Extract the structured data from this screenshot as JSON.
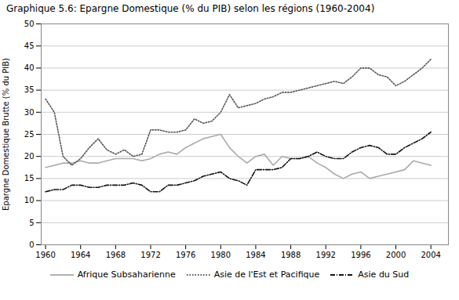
{
  "chart_data": {
    "type": "line",
    "title": "Graphique 5.6: Epargne Domestique (% du PIB) selon les régions (1960-2004)",
    "ylabel": "Epargne Domestique Brutte (% du PIB)",
    "x": [
      1960,
      1961,
      1962,
      1963,
      1964,
      1965,
      1966,
      1967,
      1968,
      1969,
      1970,
      1971,
      1972,
      1973,
      1974,
      1975,
      1976,
      1977,
      1978,
      1979,
      1980,
      1981,
      1982,
      1983,
      1984,
      1985,
      1986,
      1987,
      1988,
      1989,
      1990,
      1991,
      1992,
      1993,
      1994,
      1995,
      1996,
      1997,
      1998,
      1999,
      2000,
      2001,
      2002,
      2003,
      2004
    ],
    "series": [
      {
        "name": "Afrique Subsaharienne",
        "color": "#aaaaaa",
        "line_style": "solid",
        "values": [
          17.5,
          18.0,
          18.5,
          18.5,
          19.0,
          18.5,
          18.5,
          19.0,
          19.5,
          19.5,
          19.5,
          19.0,
          19.5,
          20.5,
          21.0,
          20.5,
          22.0,
          23.0,
          24.0,
          24.5,
          25.0,
          22.0,
          20.0,
          18.5,
          20.0,
          20.5,
          18.0,
          20.0,
          19.5,
          19.5,
          20.0,
          18.5,
          17.5,
          16.0,
          15.0,
          16.0,
          16.5,
          15.0,
          15.5,
          16.0,
          16.5,
          17.0,
          19.0,
          18.5,
          18.0
        ]
      },
      {
        "name": "Asie de l'Est et Pacifique",
        "color": "#555555",
        "line_style": "dotted",
        "values": [
          33.0,
          30.0,
          20.0,
          18.0,
          19.5,
          22.0,
          24.0,
          21.5,
          20.5,
          21.5,
          20.0,
          20.5,
          26.0,
          26.0,
          25.5,
          25.5,
          26.0,
          28.5,
          27.5,
          28.0,
          30.0,
          34.0,
          31.0,
          31.5,
          32.0,
          33.0,
          33.5,
          34.5,
          34.5,
          35.0,
          35.5,
          36.0,
          36.5,
          37.0,
          36.5,
          38.0,
          40.0,
          40.0,
          38.5,
          38.0,
          36.0,
          37.0,
          38.5,
          40.0,
          42.0
        ]
      },
      {
        "name": "Asie du Sud",
        "color": "#111111",
        "line_style": "dashdot",
        "values": [
          12.0,
          12.5,
          12.5,
          13.5,
          13.5,
          13.0,
          13.0,
          13.5,
          13.5,
          13.5,
          14.0,
          13.5,
          12.0,
          12.0,
          13.5,
          13.5,
          14.0,
          14.5,
          15.5,
          16.0,
          16.5,
          15.0,
          14.5,
          13.5,
          17.0,
          17.0,
          17.0,
          17.5,
          19.5,
          19.5,
          20.0,
          21.0,
          20.0,
          19.5,
          19.5,
          21.0,
          22.0,
          22.5,
          22.0,
          20.5,
          20.5,
          22.0,
          23.0,
          24.0,
          25.5
        ]
      }
    ],
    "xlim": [
      1959.5,
      2006
    ],
    "ylim": [
      0,
      50
    ],
    "xticks": [
      1960,
      1964,
      1968,
      1972,
      1976,
      1980,
      1984,
      1988,
      1992,
      1996,
      2000,
      2004
    ],
    "yticks": [
      0,
      5,
      10,
      15,
      20,
      25,
      30,
      35,
      40,
      45,
      50
    ],
    "grid": true,
    "legend": "bottom"
  }
}
